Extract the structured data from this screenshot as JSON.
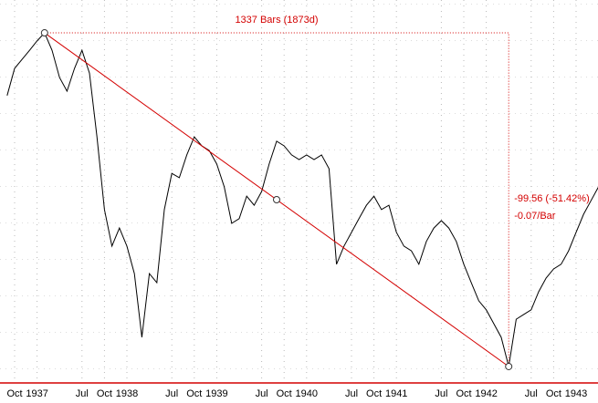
{
  "chart_data": {
    "type": "line",
    "categories": [
      null,
      "Oct",
      null,
      null,
      "1937",
      null,
      null,
      null,
      null,
      null,
      "Jul",
      null,
      null,
      "Oct",
      null,
      null,
      "1938",
      null,
      null,
      null,
      null,
      null,
      "Jul",
      null,
      null,
      "Oct",
      null,
      null,
      "1939",
      null,
      null,
      null,
      null,
      null,
      "Jul",
      null,
      null,
      "Oct",
      null,
      null,
      "1940",
      null,
      null,
      null,
      null,
      null,
      "Jul",
      null,
      null,
      "Oct",
      null,
      null,
      "1941",
      null,
      null,
      null,
      null,
      null,
      "Jul",
      null,
      null,
      "Oct",
      null,
      null,
      "1942",
      null,
      null,
      null,
      null,
      null,
      "Jul",
      null,
      null,
      "Oct",
      null,
      null,
      "1943",
      null,
      null,
      null
    ],
    "series": [
      {
        "color": "#000000",
        "values": [
          174.9,
          183.0,
          185.7,
          188.4,
          191.2,
          193.6,
          188.4,
          180.3,
          176.2,
          183.0,
          188.4,
          181.6,
          162.6,
          140.9,
          130.0,
          135.4,
          130.0,
          121.8,
          102.8,
          121.8,
          119.1,
          140.9,
          151.7,
          150.4,
          157.2,
          162.6,
          159.9,
          158.5,
          154.5,
          147.7,
          136.8,
          138.2,
          144.9,
          142.2,
          146.3,
          154.5,
          161.3,
          159.9,
          157.2,
          155.8,
          157.2,
          155.8,
          157.2,
          153.1,
          124.6,
          130.0,
          134.1,
          138.2,
          142.2,
          144.9,
          140.9,
          142.2,
          134.1,
          130.0,
          128.6,
          124.6,
          131.4,
          135.4,
          137.6,
          135.4,
          131.4,
          124.6,
          119.1,
          113.7,
          111.0,
          106.9,
          102.8,
          94.1,
          108.2,
          109.6,
          111.0,
          116.4,
          120.5,
          123.2,
          124.6,
          128.6,
          134.1,
          139.5,
          143.6,
          147.7
        ]
      }
    ],
    "ylim": [
      89.2,
      203.4
    ],
    "grid": true,
    "annotations": {
      "bars": "1337 Bars (1873d)",
      "change": "-99.56 (-51.42%)",
      "per_bar": "-0.07/Bar",
      "color": "#d40000"
    }
  }
}
